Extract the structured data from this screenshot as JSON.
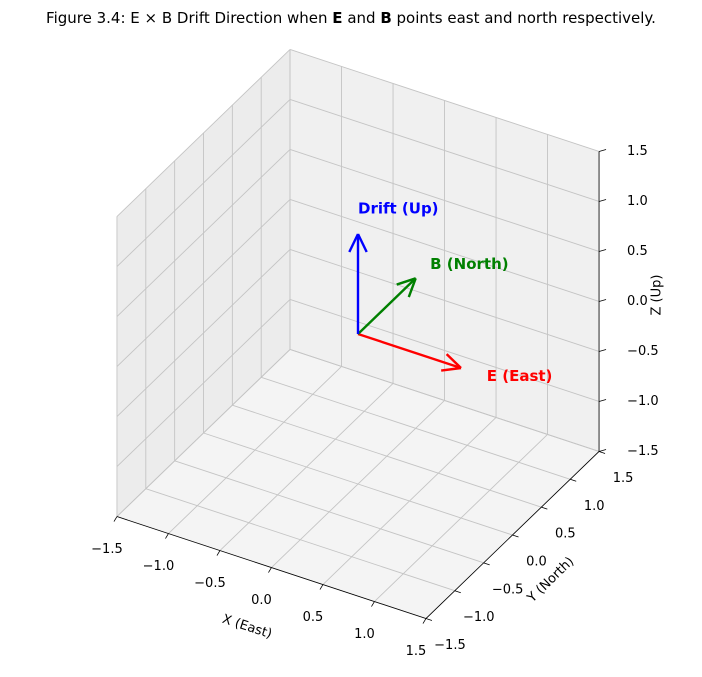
{
  "chart_data": {
    "type": "quiver3d",
    "title_parts": [
      {
        "text": "Figure 3.4: E × B Drift Direction when ",
        "bold": false
      },
      {
        "text": "E",
        "bold": true
      },
      {
        "text": " and ",
        "bold": false
      },
      {
        "text": "B",
        "bold": true
      },
      {
        "text": " points east and north respectively.",
        "bold": false
      }
    ],
    "xlabel": "X (East)",
    "ylabel": "Y (North)",
    "zlabel": "Z (Up)",
    "xlim": [
      -1.5,
      1.5
    ],
    "ylim": [
      -1.5,
      1.5
    ],
    "zlim": [
      -1.5,
      1.5
    ],
    "xticks": [
      {
        "value": -1.5,
        "label": "−1.5"
      },
      {
        "value": -1.0,
        "label": "−1.0"
      },
      {
        "value": -0.5,
        "label": "−0.5"
      },
      {
        "value": 0,
        "label": "0.0"
      },
      0.5,
      {
        "value": 1.0,
        "label": "1.0"
      },
      1.5
    ],
    "yticks": [
      {
        "value": -1.5,
        "label": "−1.5"
      },
      {
        "value": -1.0,
        "label": "−1.0"
      },
      {
        "value": -0.5,
        "label": "−0.5"
      },
      {
        "value": 0,
        "label": "0.0"
      },
      0.5,
      {
        "value": 1.0,
        "label": "1.0"
      },
      1.5
    ],
    "zticks": [
      {
        "value": -1.5,
        "label": "−1.5"
      },
      {
        "value": -1.0,
        "label": "−1.0"
      },
      {
        "value": -0.5,
        "label": "−0.5"
      },
      {
        "value": 0,
        "label": "0.0"
      },
      0.5,
      {
        "value": 1.0,
        "label": "1.0"
      },
      1.5
    ],
    "grid": true,
    "origin": [
      0,
      0,
      0
    ],
    "series": [
      {
        "name": "E (East)",
        "color": "#ff0000",
        "values": [
          1,
          0,
          0
        ]
      },
      {
        "name": "B (North)",
        "color": "#008000",
        "values": [
          0,
          1,
          0
        ]
      },
      {
        "name": "Drift (Up)",
        "color": "#0000ff",
        "values": [
          0,
          0,
          1
        ]
      }
    ]
  }
}
